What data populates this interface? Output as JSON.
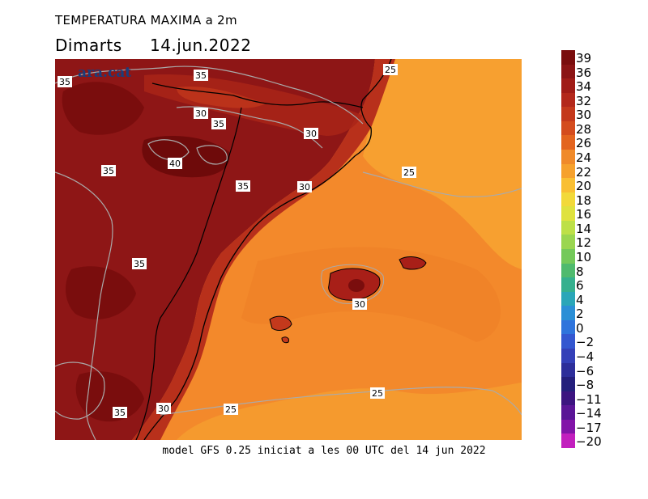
{
  "header": {
    "title": "TEMPERATURA MAXIMA a 2m",
    "day": "Dimarts",
    "date": "14.jun.2022"
  },
  "logo_text": "ara.cat",
  "footer": "model GFS 0.25 iniciat a les 00 UTC del 14 jun 2022",
  "legend": {
    "labels": [
      "39",
      "36",
      "34",
      "32",
      "30",
      "28",
      "26",
      "24",
      "22",
      "20",
      "18",
      "16",
      "14",
      "12",
      "10",
      "8",
      "6",
      "4",
      "2",
      "0",
      "−2",
      "−4",
      "−6",
      "−8",
      "−11",
      "−14",
      "−17",
      "−20"
    ],
    "colors": [
      "#7a0d0d",
      "#8b1414",
      "#a01c17",
      "#b3281b",
      "#c4391c",
      "#d44c1e",
      "#e3641f",
      "#f08a2a",
      "#f6a12d",
      "#f9bf33",
      "#f2d93a",
      "#dfe23f",
      "#bde048",
      "#9ad650",
      "#74c95a",
      "#4fba6e",
      "#35b08e",
      "#2aa6b8",
      "#2b8fd6",
      "#2f74dc",
      "#3457d0",
      "#3440b8",
      "#2d2e9a",
      "#241f7c",
      "#3c1480",
      "#5a1596",
      "#8214a8",
      "#c21fbe"
    ]
  },
  "contour_labels": [
    {
      "text": "35"
    },
    {
      "text": "35"
    },
    {
      "text": "30"
    },
    {
      "text": "35"
    },
    {
      "text": "30"
    },
    {
      "text": "35"
    },
    {
      "text": "40"
    },
    {
      "text": "35"
    },
    {
      "text": "30"
    },
    {
      "text": "25"
    },
    {
      "text": "25"
    },
    {
      "text": "35"
    },
    {
      "text": "30"
    },
    {
      "text": "25"
    },
    {
      "text": "35"
    },
    {
      "text": "30"
    },
    {
      "text": "25"
    }
  ],
  "colors": {
    "hot": "#8e1616",
    "veryhot": "#6e0a0a",
    "warm": "#c43a1c",
    "sea": "#f3892b",
    "sea_north": "#f8a331",
    "contour": "#aaaaaa"
  }
}
